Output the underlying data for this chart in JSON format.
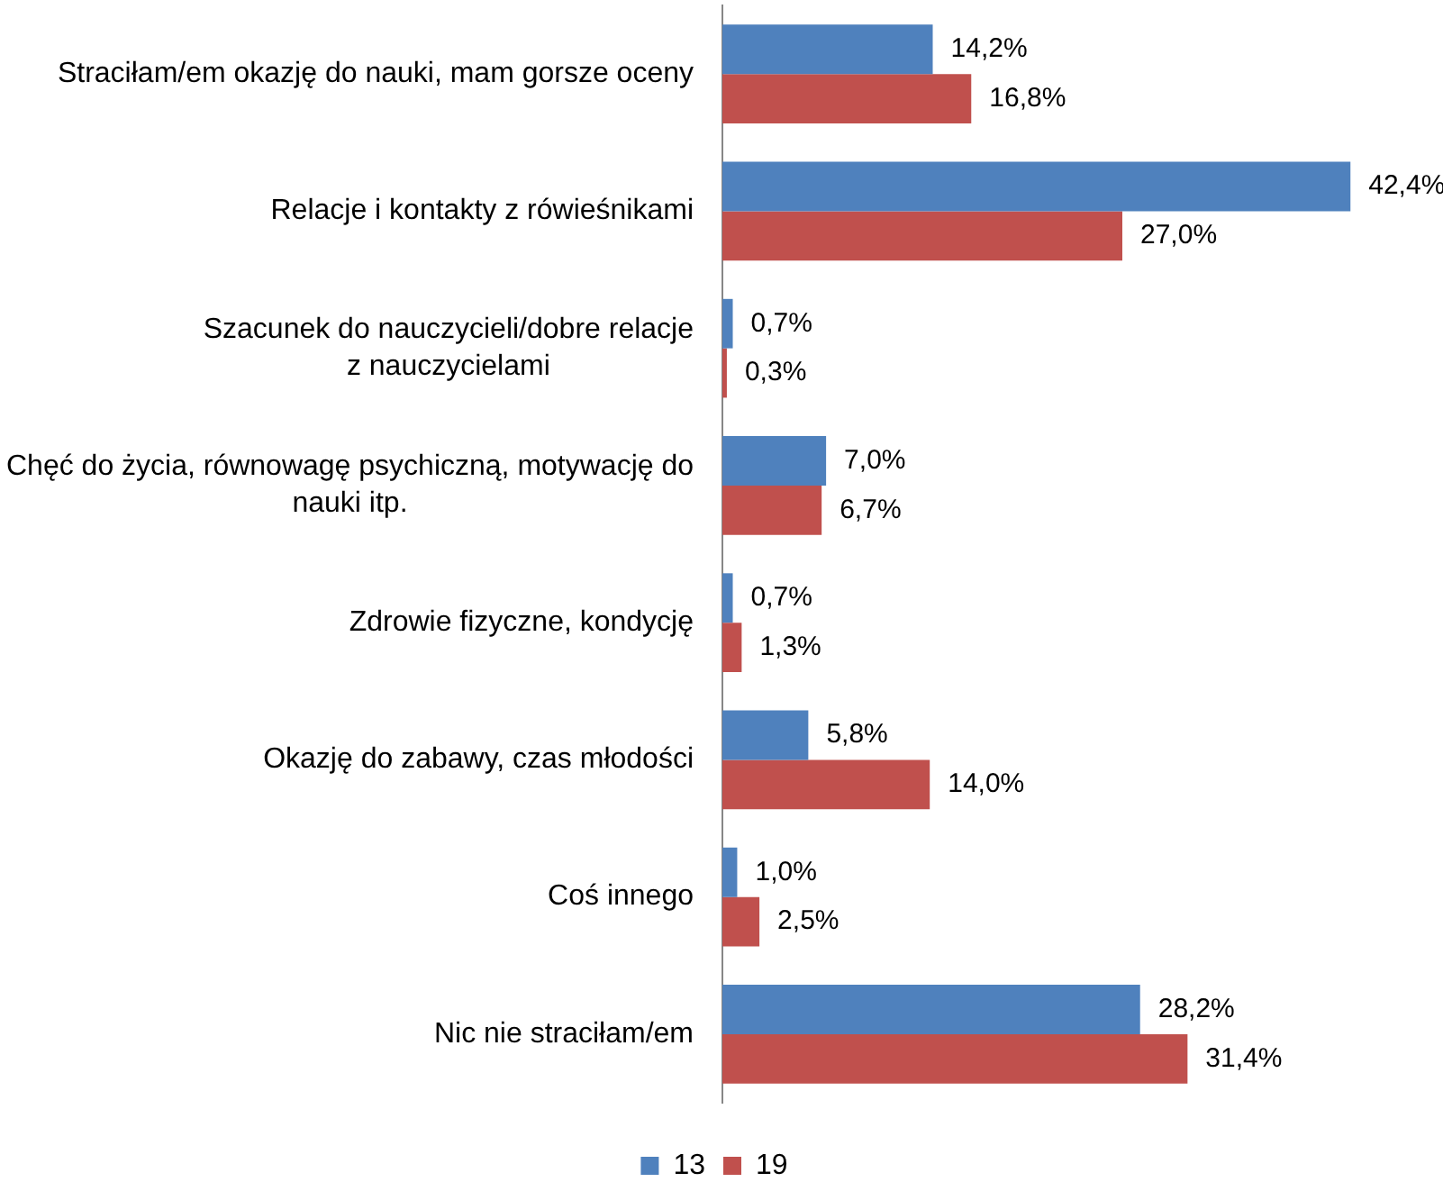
{
  "chart_data": {
    "type": "bar",
    "orientation": "horizontal",
    "categories": [
      "Straciłam/em okazję do nauki, mam gorsze oceny",
      "Relacje i kontakty z rówieśnikami",
      "Szacunek do nauczycieli/dobre relacje z nauczycielami",
      "Chęć do życia, równowagę psychiczną, motywację do nauki itp.",
      "Zdrowie fizyczne, kondycję",
      "Okazję do zabawy, czas młodości",
      "Coś innego",
      "Nic nie straciłam/em"
    ],
    "series": [
      {
        "name": "13",
        "color": "#4f81bd",
        "values": [
          14.2,
          42.4,
          0.7,
          7.0,
          0.7,
          5.8,
          1.0,
          28.2
        ],
        "value_labels": [
          "14,2%",
          "42,4%",
          "0,7%",
          "7,0%",
          "0,7%",
          "5,8%",
          "1,0%",
          "28,2%"
        ]
      },
      {
        "name": "19",
        "color": "#c0504d",
        "values": [
          16.8,
          27.0,
          0.3,
          6.7,
          1.3,
          14.0,
          2.5,
          31.4
        ],
        "value_labels": [
          "16,8%",
          "27,0%",
          "0,3%",
          "6,7%",
          "1,3%",
          "14,0%",
          "2,5%",
          "31,4%"
        ]
      }
    ],
    "tick_labels": "y",
    "legend": "bottom"
  }
}
